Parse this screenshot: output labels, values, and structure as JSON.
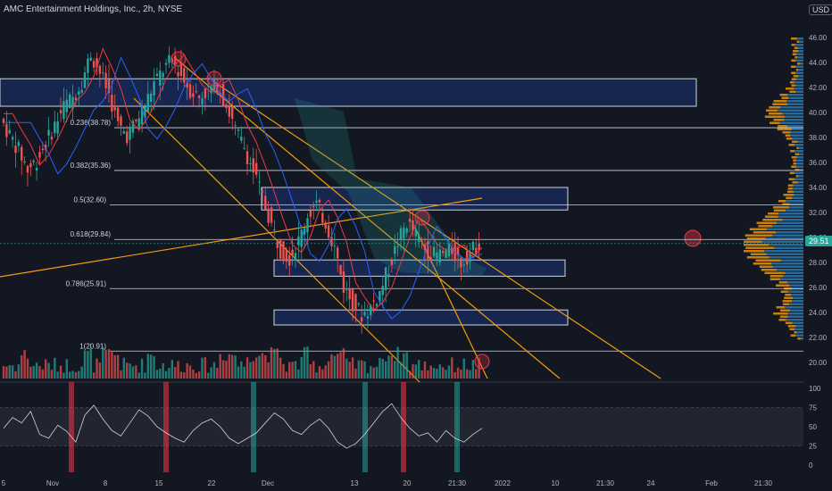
{
  "header": {
    "title": "AMC Entertainment Holdings, Inc., 2h, NYSE",
    "currency": "USD"
  },
  "last_price": "29.51",
  "chart_data": [
    {
      "type": "candlestick",
      "title": "AMC Entertainment Holdings, Inc., 2h, NYSE",
      "ylim": [
        19,
        47
      ],
      "price_ticks": [
        "46.00",
        "44.00",
        "42.00",
        "40.00",
        "38.00",
        "36.00",
        "34.00",
        "32.00",
        "30.00",
        "28.00",
        "26.00",
        "24.00",
        "22.00",
        "20.00"
      ],
      "time_ticks": [
        "5",
        "Nov",
        "8",
        "15",
        "22",
        "Dec",
        "13",
        "20",
        "21:30",
        "2022",
        "10",
        "21:30",
        "24",
        "Feb",
        "21:30"
      ],
      "fib_levels": [
        {
          "label": "0.236(38.78)",
          "value": 38.78
        },
        {
          "label": "0.382(35.36)",
          "value": 35.36
        },
        {
          "label": "0.5(32.60)",
          "value": 32.6
        },
        {
          "label": "0.618(29.84)",
          "value": 29.84
        },
        {
          "label": "0.786(25.91)",
          "value": 25.91
        },
        {
          "label": "1(20.91)",
          "value": 20.91
        }
      ],
      "zones": [
        {
          "from": 40.5,
          "to": 42.7
        },
        {
          "from": 32.2,
          "to": 34.0
        },
        {
          "from": 26.9,
          "to": 28.2
        },
        {
          "from": 23.0,
          "to": 24.2
        }
      ],
      "price_path": [
        39.5,
        38.2,
        37.0,
        35.4,
        36.2,
        37.5,
        39.0,
        40.5,
        41.2,
        42.5,
        44.7,
        43.2,
        41.5,
        39.0,
        38.2,
        39.2,
        40.6,
        42.3,
        43.4,
        44.2,
        43.0,
        41.8,
        41.2,
        41.8,
        42.2,
        40.6,
        38.6,
        37.2,
        35.3,
        33.2,
        31.0,
        29.0,
        28.4,
        29.7,
        31.8,
        32.6,
        31.2,
        29.2,
        26.0,
        24.8,
        23.8,
        24.4,
        25.6,
        27.6,
        29.6,
        31.2,
        30.2,
        29.1,
        28.6,
        28.7,
        29.0,
        28.0,
        28.8,
        29.51
      ]
    },
    {
      "type": "line",
      "title": "",
      "ylim": [
        0,
        100
      ],
      "ticks": [
        "100",
        "75",
        "50",
        "25",
        "0"
      ],
      "values": [
        48,
        62,
        55,
        70,
        40,
        35,
        52,
        44,
        30,
        65,
        78,
        60,
        45,
        38,
        55,
        72,
        64,
        50,
        42,
        35,
        30,
        45,
        55,
        60,
        50,
        35,
        28,
        35,
        42,
        55,
        68,
        60,
        45,
        40,
        52,
        60,
        48,
        30,
        22,
        28,
        40,
        55,
        70,
        80,
        62,
        48,
        38,
        42,
        30,
        45,
        35,
        30,
        40,
        48
      ]
    }
  ]
}
